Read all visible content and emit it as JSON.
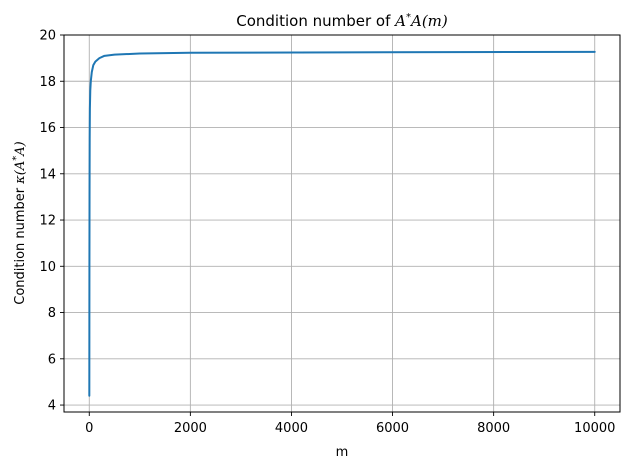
{
  "chart_data": {
    "type": "line",
    "title": "Condition number of A*A(m)",
    "title_parts": {
      "prefix": "Condition number of ",
      "A": "A",
      "star": "*",
      "Am": "A(m)"
    },
    "xlabel": "m",
    "ylabel": "Condition number κ(A*A)",
    "ylabel_parts": {
      "prefix": "Condition number ",
      "kappa": "κ(A",
      "star": "*",
      "suffix": "A)"
    },
    "xlim": [
      -500,
      10500
    ],
    "ylim": [
      3.7,
      20.0
    ],
    "xticks": [
      0,
      2000,
      4000,
      6000,
      8000,
      10000
    ],
    "xtick_labels": [
      "0",
      "2000",
      "4000",
      "6000",
      "8000",
      "10000"
    ],
    "yticks": [
      4,
      6,
      8,
      10,
      12,
      14,
      16,
      18,
      20
    ],
    "ytick_labels": [
      "4",
      "6",
      "8",
      "10",
      "12",
      "14",
      "16",
      "18",
      "20"
    ],
    "grid": true,
    "color": "#1f77b4",
    "series": [
      {
        "x": [
          1,
          2,
          3,
          5,
          8,
          12,
          20,
          30,
          50,
          80,
          120,
          200,
          300,
          500,
          1000,
          2000,
          5000,
          10000
        ],
        "y": [
          4.4,
          7.0,
          10.0,
          13.0,
          15.5,
          16.8,
          17.6,
          18.0,
          18.4,
          18.7,
          18.85,
          19.0,
          19.1,
          19.15,
          19.2,
          19.23,
          19.25,
          19.27
        ]
      }
    ]
  }
}
